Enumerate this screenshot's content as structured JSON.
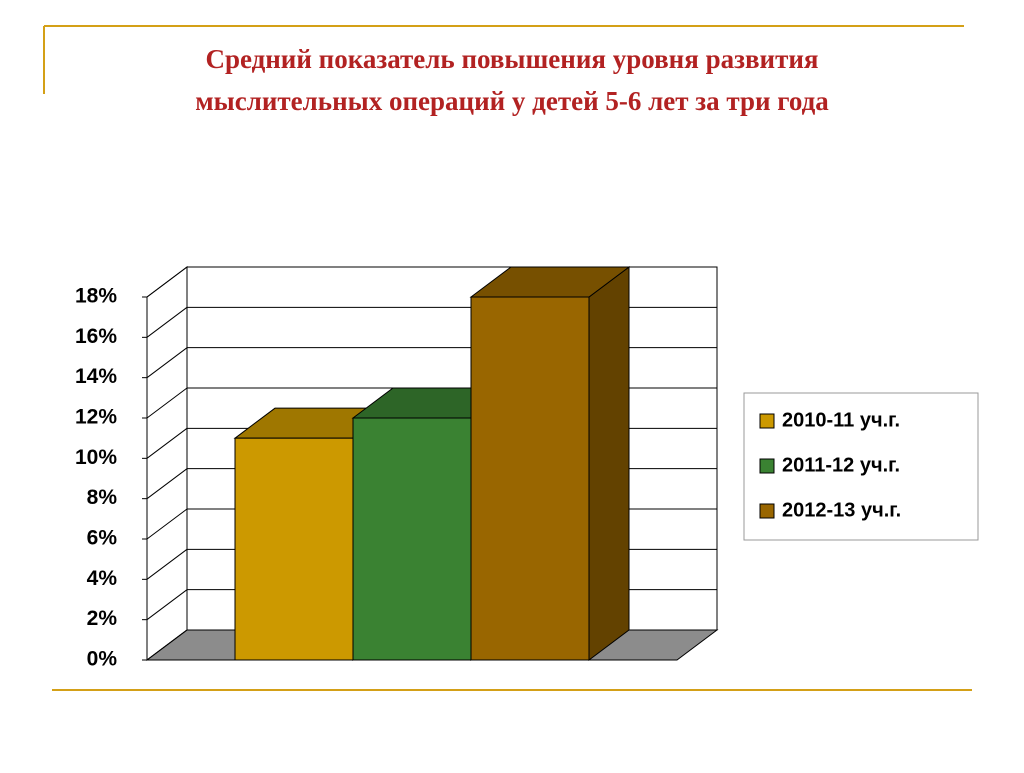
{
  "chart_data": {
    "type": "bar3d",
    "title": "Средний показатель повышения уровня развития",
    "subtitle": "мыслительных операций у детей 5-6 лет за три года",
    "categories": [
      null
    ],
    "series": [
      {
        "name": "2010-11 уч.г.",
        "color": "#cc9900",
        "values": [
          11
        ]
      },
      {
        "name": "2011-12 уч.г.",
        "color": "#3a8232",
        "values": [
          12
        ]
      },
      {
        "name": "2012-13 уч.г.",
        "color": "#996600",
        "values": [
          18
        ]
      }
    ],
    "ylim": [
      0,
      18
    ],
    "yticks": [
      {
        "value": 0,
        "label": "0%"
      },
      {
        "value": 2,
        "label": "2%"
      },
      {
        "value": 4,
        "label": "4%"
      },
      {
        "value": 6,
        "label": "6%"
      },
      {
        "value": 8,
        "label": "8%"
      },
      {
        "value": 10,
        "label": "10%"
      },
      {
        "value": 12,
        "label": "12%"
      },
      {
        "value": 14,
        "label": "14%"
      },
      {
        "value": 16,
        "label": "16%"
      },
      {
        "value": 18,
        "label": "18%"
      }
    ],
    "grid": true,
    "legend": "right"
  }
}
